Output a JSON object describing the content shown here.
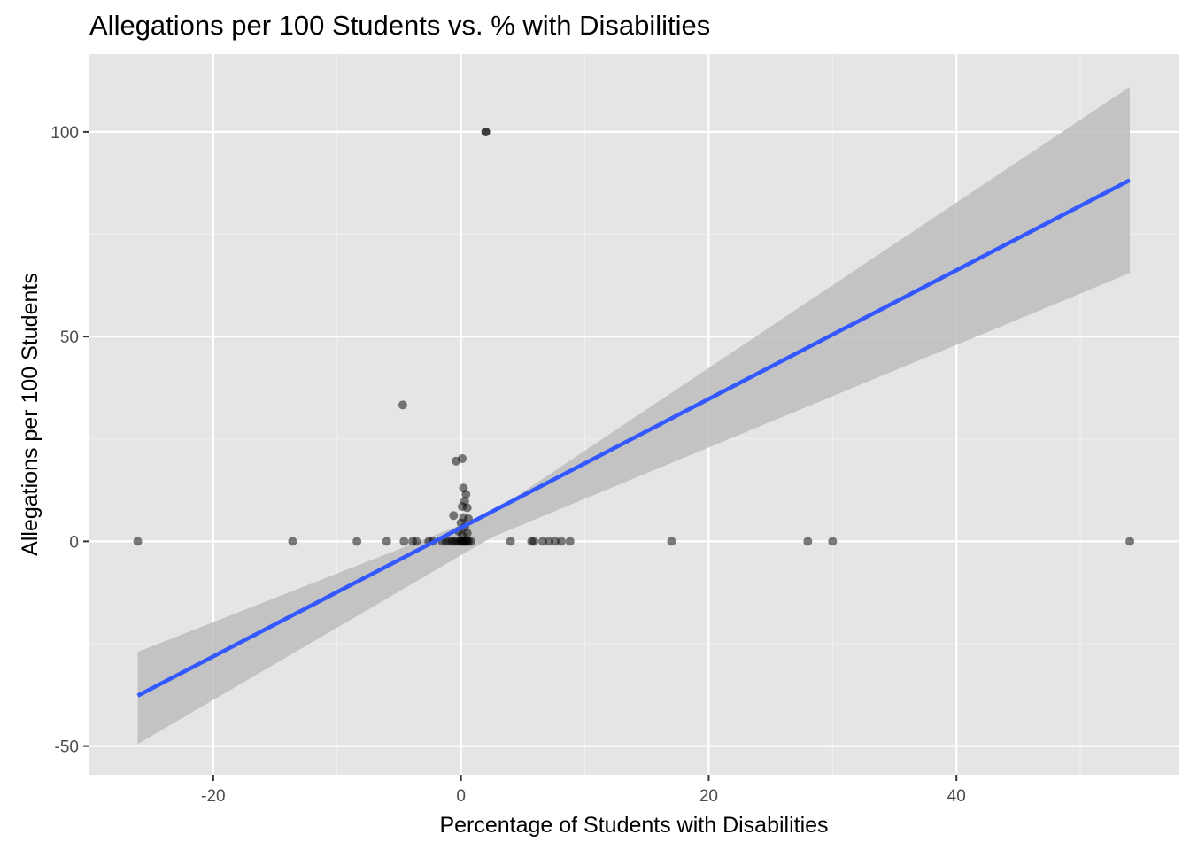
{
  "colors": {
    "panel_background": "#e5e5e5",
    "grid_major": "#ffffff",
    "grid_minor": "#f0f0f0",
    "points": "#000000",
    "fit_line": "#3358ff",
    "confidence_band": "#bdbdbd",
    "tick_text": "#4d4d4d"
  },
  "chart_data": {
    "type": "scatter",
    "title": "Allegations per 100 Students vs. % with Disabilities",
    "xlabel": "Percentage of Students with Disabilities",
    "ylabel": "Allegations per 100 Students",
    "xlim": [
      -30,
      58
    ],
    "ylim": [
      -57,
      119
    ],
    "x_ticks": [
      -20,
      0,
      20,
      40
    ],
    "y_ticks": [
      -50,
      0,
      50,
      100
    ],
    "x_tick_labels": [
      "-20",
      "0",
      "20",
      "40"
    ],
    "y_tick_labels": [
      "-50",
      "0",
      "50",
      "100"
    ],
    "grid": true,
    "legend": "none",
    "points": {
      "x": [
        -26.1,
        -13.6,
        -8.4,
        -6.0,
        -4.6,
        -3.9,
        -3.6,
        -2.6,
        -2.3,
        -1.5,
        -1.2,
        -0.9,
        -0.7,
        -0.5,
        -0.3,
        -0.1,
        0.0,
        0.1,
        0.2,
        0.3,
        0.4,
        0.5,
        0.6,
        0.8,
        4.0,
        5.7,
        5.9,
        6.6,
        7.1,
        7.6,
        8.1,
        8.8,
        17.0,
        28.0,
        30.0,
        54.0,
        -4.7,
        -0.4,
        0.1,
        0.2,
        0.4,
        -0.6,
        0.3,
        0.1,
        0.5,
        0.2,
        0.6,
        0.0,
        0.3,
        -0.2,
        0.5,
        0.1,
        2.0,
        2.0
      ],
      "y": [
        0,
        0,
        0,
        0,
        0,
        0,
        0,
        0,
        0,
        0,
        0,
        0,
        0,
        0,
        0,
        0,
        0,
        0,
        0,
        0,
        0,
        0,
        0,
        0,
        0,
        0,
        0,
        0,
        0,
        0,
        0,
        0,
        0,
        0,
        0,
        0,
        33.3,
        19.6,
        20.2,
        13.0,
        11.5,
        6.3,
        9.8,
        8.5,
        8.2,
        5.8,
        5.5,
        4.5,
        3.5,
        2.5,
        2.0,
        1.5,
        100,
        100
      ]
    },
    "fit": {
      "method": "linear regression",
      "x": [
        -26.1,
        54.0
      ],
      "y": [
        -37.7,
        88.2
      ],
      "band_lower": [
        -49.5,
        65.5
      ],
      "band_upper": [
        -27.0,
        111.0
      ],
      "pivot": {
        "x": 2.5,
        "y_lower": 1.0,
        "y_upper": 7.0
      }
    }
  }
}
